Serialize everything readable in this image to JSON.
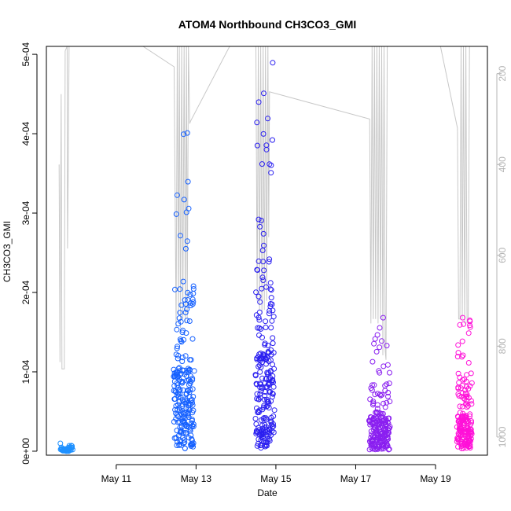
{
  "chart_data": {
    "type": "scatter",
    "title": "ATOM4 Northbound CH3CO3_GMI",
    "xlabel": "Date",
    "ylabel": "CH3CO3_GMI",
    "x_ticks": [
      "May 11",
      "May 13",
      "May 15",
      "May 17",
      "May 19"
    ],
    "x_tick_days": [
      11,
      13,
      15,
      17,
      19
    ],
    "xlim_days": [
      9.25,
      20.3
    ],
    "ylim": [
      -5e-06,
      0.00051
    ],
    "y_ticks": [
      0,
      0.0001,
      0.0002,
      0.0003,
      0.0004,
      0.0005
    ],
    "y_tick_labels": [
      "0e+00",
      "1e-04",
      "2e-04",
      "3e-04",
      "4e-04",
      "5e-04"
    ],
    "y2_label": "",
    "y2_ticks": [
      200,
      400,
      600,
      800,
      1000
    ],
    "y2lim": [
      1040,
      140
    ],
    "colors": {
      "pressure_line": "#c8c8c8",
      "axis": "#000000",
      "y2_axis": "#b4b4b4",
      "flight_colors": [
        "#1e90ff",
        "#1560ff",
        "#2a1ff0",
        "#8a1ff0",
        "#ff10d8"
      ]
    },
    "flights": [
      {
        "day_start": 9.6,
        "day_end": 9.9,
        "mix_low": 0,
        "mix_high": 1.4e-05,
        "n": 45
      },
      {
        "day_start": 12.45,
        "day_end": 12.95,
        "mix_low": 3e-06,
        "mix_high": 0.000415,
        "n": 230
      },
      {
        "day_start": 14.5,
        "day_end": 14.95,
        "mix_low": 4e-06,
        "mix_high": 0.000492,
        "n": 230
      },
      {
        "day_start": 17.35,
        "day_end": 17.85,
        "mix_low": 2e-06,
        "mix_high": 0.00017,
        "n": 200
      },
      {
        "day_start": 19.55,
        "day_end": 19.9,
        "mix_low": 3e-06,
        "mix_high": 0.00017,
        "n": 180
      }
    ],
    "pressure_series": [
      [
        9.57,
        400
      ],
      [
        9.59,
        835
      ],
      [
        9.62,
        245
      ],
      [
        9.64,
        850
      ],
      [
        9.7,
        850
      ],
      [
        9.72,
        150
      ],
      [
        9.77,
        140
      ],
      [
        9.78,
        585
      ],
      [
        9.8,
        395
      ],
      [
        9.82,
        130
      ],
      [
        11.5,
        130
      ],
      [
        12.45,
        185
      ],
      [
        12.5,
        760
      ],
      [
        12.53,
        140
      ],
      [
        12.56,
        730
      ],
      [
        12.58,
        140
      ],
      [
        12.61,
        760
      ],
      [
        12.64,
        140
      ],
      [
        12.67,
        740
      ],
      [
        12.7,
        140
      ],
      [
        12.73,
        750
      ],
      [
        12.76,
        140
      ],
      [
        12.78,
        740
      ],
      [
        12.81,
        140
      ],
      [
        12.84,
        310
      ],
      [
        12.86,
        305
      ],
      [
        13.9,
        130
      ],
      [
        14.5,
        140
      ],
      [
        14.53,
        700
      ],
      [
        14.56,
        140
      ],
      [
        14.59,
        720
      ],
      [
        14.62,
        140
      ],
      [
        14.65,
        730
      ],
      [
        14.68,
        140
      ],
      [
        14.71,
        720
      ],
      [
        14.74,
        140
      ],
      [
        14.77,
        700
      ],
      [
        14.8,
        140
      ],
      [
        14.82,
        560
      ],
      [
        14.84,
        240
      ],
      [
        17.35,
        300
      ],
      [
        17.38,
        750
      ],
      [
        17.41,
        140
      ],
      [
        17.44,
        740
      ],
      [
        17.47,
        140
      ],
      [
        17.5,
        740
      ],
      [
        17.53,
        140
      ],
      [
        17.56,
        750
      ],
      [
        17.59,
        140
      ],
      [
        17.62,
        740
      ],
      [
        17.65,
        140
      ],
      [
        17.68,
        820
      ],
      [
        17.71,
        140
      ],
      [
        17.74,
        810
      ],
      [
        17.76,
        830
      ],
      [
        17.79,
        140
      ],
      [
        19.1,
        130
      ],
      [
        19.55,
        320
      ],
      [
        19.58,
        740
      ],
      [
        19.61,
        740
      ],
      [
        19.64,
        140
      ],
      [
        19.67,
        740
      ],
      [
        19.7,
        140
      ],
      [
        19.73,
        750
      ],
      [
        19.76,
        140
      ],
      [
        19.79,
        750
      ],
      [
        19.82,
        740
      ],
      [
        19.85,
        140
      ]
    ]
  }
}
